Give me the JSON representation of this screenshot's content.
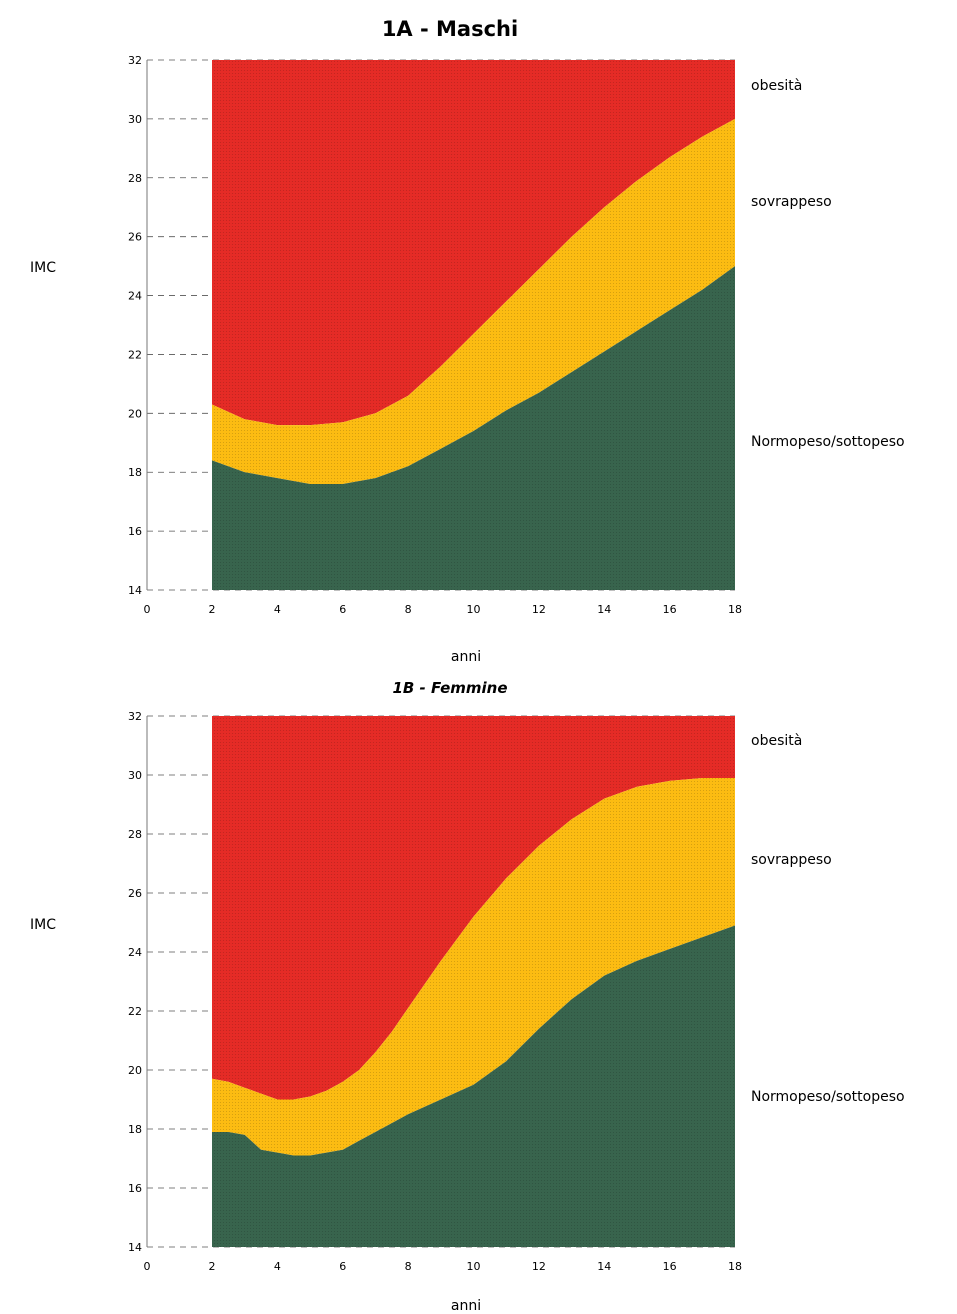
{
  "colors": {
    "obesity": "#e52b26",
    "overweight": "#fcbc12",
    "normal": "#38644d"
  },
  "chart_data": [
    {
      "type": "area",
      "title": "1A - Maschi",
      "xlabel": "anni",
      "ylabel": "IMC",
      "xlim": [
        0,
        18
      ],
      "ylim": [
        14,
        32
      ],
      "xticks": [
        0,
        2,
        4,
        6,
        8,
        10,
        12,
        14,
        16,
        18
      ],
      "yticks": [
        14,
        16,
        18,
        20,
        22,
        24,
        26,
        28,
        30,
        32
      ],
      "grid": true,
      "band_labels": [
        "obesità",
        "sovrappeso",
        "Normopeso/sottopeso"
      ],
      "x": [
        2,
        3,
        4,
        5,
        6,
        7,
        8,
        9,
        10,
        11,
        12,
        13,
        14,
        15,
        16,
        17,
        18
      ],
      "series": [
        {
          "name": "obesità",
          "band": "obesity",
          "values": [
            32,
            32,
            32,
            32,
            32,
            32,
            32,
            32,
            32,
            32,
            32,
            32,
            32,
            32,
            32,
            32,
            32
          ]
        },
        {
          "name": "sovrappeso",
          "band": "overweight",
          "values": [
            20.3,
            19.8,
            19.6,
            19.6,
            19.7,
            20.0,
            20.6,
            21.6,
            22.7,
            23.8,
            24.9,
            26.0,
            27.0,
            27.9,
            28.7,
            29.4,
            30.0
          ]
        },
        {
          "name": "Normopeso/sottopeso",
          "band": "normal",
          "values": [
            18.4,
            18.0,
            17.8,
            17.6,
            17.6,
            17.8,
            18.2,
            18.8,
            19.4,
            20.1,
            20.7,
            21.4,
            22.1,
            22.8,
            23.5,
            24.2,
            25.0
          ]
        }
      ]
    },
    {
      "type": "area",
      "title": "1B - Femmine",
      "xlabel": "anni",
      "ylabel": "IMC",
      "xlim": [
        0,
        18
      ],
      "ylim": [
        14,
        32
      ],
      "xticks": [
        0,
        2,
        4,
        6,
        8,
        10,
        12,
        14,
        16,
        18
      ],
      "yticks": [
        14,
        16,
        18,
        20,
        22,
        24,
        26,
        28,
        30,
        32
      ],
      "grid": true,
      "band_labels": [
        "obesità",
        "sovrappeso",
        "Normopeso/sottopeso"
      ],
      "x": [
        2,
        2.5,
        3,
        3.5,
        4,
        4.5,
        5,
        5.5,
        6,
        6.5,
        7,
        7.5,
        8,
        9,
        10,
        11,
        12,
        13,
        14,
        15,
        16,
        17,
        18
      ],
      "series": [
        {
          "name": "obesità",
          "band": "obesity",
          "values": [
            32,
            32,
            32,
            32,
            32,
            32,
            32,
            32,
            32,
            32,
            32,
            32,
            32,
            32,
            32,
            32,
            32,
            32,
            32,
            32,
            32,
            32,
            32
          ]
        },
        {
          "name": "sovrappeso",
          "band": "overweight",
          "values": [
            19.7,
            19.6,
            19.4,
            19.2,
            19.0,
            19.0,
            19.1,
            19.3,
            19.6,
            20.0,
            20.6,
            21.3,
            22.1,
            23.7,
            25.2,
            26.5,
            27.6,
            28.5,
            29.2,
            29.6,
            29.8,
            29.9,
            29.9
          ]
        },
        {
          "name": "Normopeso/sottopeso",
          "band": "normal",
          "values": [
            17.9,
            17.9,
            17.8,
            17.3,
            17.2,
            17.1,
            17.1,
            17.2,
            17.3,
            17.6,
            17.9,
            18.2,
            18.5,
            19.0,
            19.5,
            20.3,
            21.4,
            22.4,
            23.2,
            23.7,
            24.1,
            24.5,
            24.9
          ]
        }
      ]
    }
  ]
}
